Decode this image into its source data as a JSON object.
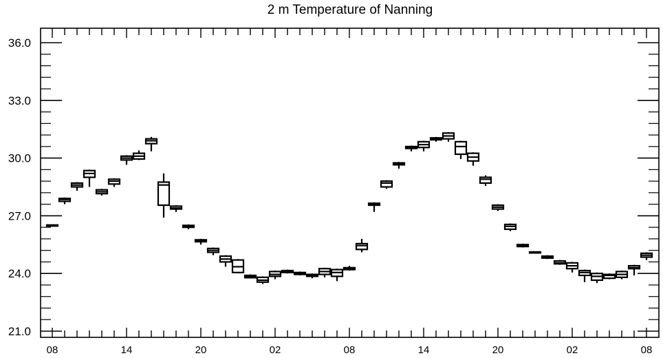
{
  "chart_data": {
    "type": "box",
    "title": "2 m Temperature of Nanning",
    "xlabel": "",
    "ylabel": "",
    "ylim": [
      21.0,
      36.0
    ],
    "y_ticks": [
      "21.0",
      "24.0",
      "27.0",
      "30.0",
      "33.0",
      "36.0"
    ],
    "x_tick_labels": [
      "08",
      "14",
      "20",
      "02",
      "08",
      "14",
      "20",
      "02",
      "08"
    ],
    "x_tick_step": 6,
    "grid": false,
    "legend": "none",
    "line_color": "#000000",
    "boxes": [
      {
        "hour": 0,
        "min": 26.45,
        "q1": 26.48,
        "median": 26.5,
        "q3": 26.52,
        "max": 26.55
      },
      {
        "hour": 1,
        "min": 27.6,
        "q1": 27.75,
        "median": 27.85,
        "q3": 27.9,
        "max": 27.95
      },
      {
        "hour": 2,
        "min": 28.3,
        "q1": 28.5,
        "median": 28.6,
        "q3": 28.7,
        "max": 28.75
      },
      {
        "hour": 3,
        "min": 28.5,
        "q1": 29.0,
        "median": 29.2,
        "q3": 29.35,
        "max": 29.4
      },
      {
        "hour": 4,
        "min": 28.05,
        "q1": 28.15,
        "median": 28.25,
        "q3": 28.35,
        "max": 28.4
      },
      {
        "hour": 5,
        "min": 28.5,
        "q1": 28.65,
        "median": 28.8,
        "q3": 28.9,
        "max": 28.95
      },
      {
        "hour": 6,
        "min": 29.65,
        "q1": 29.9,
        "median": 30.0,
        "q3": 30.1,
        "max": 30.15
      },
      {
        "hour": 7,
        "min": 29.9,
        "q1": 29.95,
        "median": 30.1,
        "q3": 30.25,
        "max": 30.4
      },
      {
        "hour": 8,
        "min": 30.35,
        "q1": 30.75,
        "median": 30.9,
        "q3": 31.0,
        "max": 31.1
      },
      {
        "hour": 9,
        "min": 26.9,
        "q1": 27.55,
        "median": 28.6,
        "q3": 28.75,
        "max": 29.2
      },
      {
        "hour": 10,
        "min": 27.2,
        "q1": 27.35,
        "median": 27.4,
        "q3": 27.5,
        "max": 27.55
      },
      {
        "hour": 11,
        "min": 26.3,
        "q1": 26.4,
        "median": 26.45,
        "q3": 26.5,
        "max": 26.55
      },
      {
        "hour": 12,
        "min": 25.5,
        "q1": 25.65,
        "median": 25.7,
        "q3": 25.75,
        "max": 25.8
      },
      {
        "hour": 13,
        "min": 24.95,
        "q1": 25.1,
        "median": 25.2,
        "q3": 25.3,
        "max": 25.35
      },
      {
        "hour": 14,
        "min": 24.35,
        "q1": 24.6,
        "median": 24.75,
        "q3": 24.9,
        "max": 24.95
      },
      {
        "hour": 15,
        "min": 24.0,
        "q1": 24.05,
        "median": 24.35,
        "q3": 24.7,
        "max": 24.75
      },
      {
        "hour": 16,
        "min": 23.75,
        "q1": 23.78,
        "median": 23.85,
        "q3": 23.9,
        "max": 23.95
      },
      {
        "hour": 17,
        "min": 23.45,
        "q1": 23.55,
        "median": 23.65,
        "q3": 23.8,
        "max": 23.85
      },
      {
        "hour": 18,
        "min": 23.7,
        "q1": 23.85,
        "median": 23.95,
        "q3": 24.1,
        "max": 24.15
      },
      {
        "hour": 19,
        "min": 24.0,
        "q1": 24.05,
        "median": 24.1,
        "q3": 24.15,
        "max": 24.2
      },
      {
        "hour": 20,
        "min": 23.9,
        "q1": 23.95,
        "median": 24.0,
        "q3": 24.05,
        "max": 24.1
      },
      {
        "hour": 21,
        "min": 23.75,
        "q1": 23.85,
        "median": 23.9,
        "q3": 23.95,
        "max": 24.0
      },
      {
        "hour": 22,
        "min": 23.8,
        "q1": 23.95,
        "median": 24.1,
        "q3": 24.25,
        "max": 24.3
      },
      {
        "hour": 23,
        "min": 23.6,
        "q1": 23.85,
        "median": 24.05,
        "q3": 24.2,
        "max": 24.25
      },
      {
        "hour": 24,
        "min": 24.15,
        "q1": 24.2,
        "median": 24.25,
        "q3": 24.3,
        "max": 24.4
      },
      {
        "hour": 25,
        "min": 25.1,
        "q1": 25.25,
        "median": 25.45,
        "q3": 25.55,
        "max": 25.8
      },
      {
        "hour": 26,
        "min": 27.2,
        "q1": 27.55,
        "median": 27.6,
        "q3": 27.65,
        "max": 27.7
      },
      {
        "hour": 27,
        "min": 28.4,
        "q1": 28.5,
        "median": 28.7,
        "q3": 28.8,
        "max": 28.85
      },
      {
        "hour": 28,
        "min": 29.45,
        "q1": 29.65,
        "median": 29.7,
        "q3": 29.75,
        "max": 29.8
      },
      {
        "hour": 29,
        "min": 30.35,
        "q1": 30.5,
        "median": 30.55,
        "q3": 30.6,
        "max": 30.65
      },
      {
        "hour": 30,
        "min": 30.35,
        "q1": 30.55,
        "median": 30.7,
        "q3": 30.85,
        "max": 30.9
      },
      {
        "hour": 31,
        "min": 30.85,
        "q1": 30.95,
        "median": 31.0,
        "q3": 31.05,
        "max": 31.1
      },
      {
        "hour": 32,
        "min": 30.85,
        "q1": 31.0,
        "median": 31.15,
        "q3": 31.3,
        "max": 31.35
      },
      {
        "hour": 33,
        "min": 29.95,
        "q1": 30.2,
        "median": 30.6,
        "q3": 30.85,
        "max": 30.9
      },
      {
        "hour": 34,
        "min": 29.6,
        "q1": 29.85,
        "median": 30.05,
        "q3": 30.25,
        "max": 30.3
      },
      {
        "hour": 35,
        "min": 28.55,
        "q1": 28.7,
        "median": 28.9,
        "q3": 29.0,
        "max": 29.1
      },
      {
        "hour": 36,
        "min": 27.25,
        "q1": 27.35,
        "median": 27.45,
        "q3": 27.55,
        "max": 27.6
      },
      {
        "hour": 37,
        "min": 26.2,
        "q1": 26.3,
        "median": 26.45,
        "q3": 26.55,
        "max": 26.6
      },
      {
        "hour": 38,
        "min": 25.35,
        "q1": 25.4,
        "median": 25.45,
        "q3": 25.5,
        "max": 25.55
      },
      {
        "hour": 39,
        "min": 25.05,
        "q1": 25.08,
        "median": 25.1,
        "q3": 25.12,
        "max": 25.15
      },
      {
        "hour": 40,
        "min": 24.75,
        "q1": 24.8,
        "median": 24.85,
        "q3": 24.9,
        "max": 24.95
      },
      {
        "hour": 41,
        "min": 24.45,
        "q1": 24.5,
        "median": 24.55,
        "q3": 24.65,
        "max": 24.7
      },
      {
        "hour": 42,
        "min": 24.05,
        "q1": 24.25,
        "median": 24.4,
        "q3": 24.55,
        "max": 24.6
      },
      {
        "hour": 43,
        "min": 23.55,
        "q1": 23.9,
        "median": 24.05,
        "q3": 24.15,
        "max": 24.2
      },
      {
        "hour": 44,
        "min": 23.5,
        "q1": 23.65,
        "median": 23.85,
        "q3": 24.0,
        "max": 24.05
      },
      {
        "hour": 45,
        "min": 23.7,
        "q1": 23.75,
        "median": 23.9,
        "q3": 23.95,
        "max": 24.0
      },
      {
        "hour": 46,
        "min": 23.7,
        "q1": 23.8,
        "median": 23.95,
        "q3": 24.1,
        "max": 24.15
      },
      {
        "hour": 47,
        "min": 23.9,
        "q1": 24.25,
        "median": 24.3,
        "q3": 24.4,
        "max": 24.45
      },
      {
        "hour": 48,
        "min": 24.7,
        "q1": 24.85,
        "median": 24.95,
        "q3": 25.05,
        "max": 25.1
      }
    ]
  }
}
